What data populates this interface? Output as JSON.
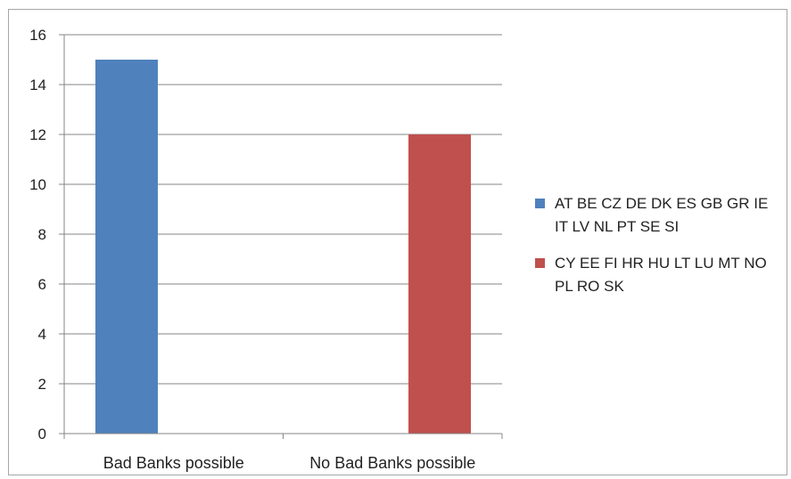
{
  "chart_data": {
    "type": "bar",
    "title": "",
    "xlabel": "",
    "ylabel": "",
    "categories": [
      "Bad Banks possible",
      "No Bad Banks possible"
    ],
    "series": [
      {
        "name": "AT BE CZ DE DK ES GB GR IE IT LV NL PT SE SI",
        "values": [
          15,
          null
        ],
        "color": "#4f81bd"
      },
      {
        "name": "CY EE FI HR HU LT LU MT NO PL RO SK",
        "values": [
          null,
          12
        ],
        "color": "#c0504d"
      }
    ],
    "ylim": [
      0,
      16
    ],
    "yticks": [
      0,
      2,
      4,
      6,
      8,
      10,
      12,
      14,
      16
    ],
    "grid": true,
    "legend_position": "right"
  }
}
